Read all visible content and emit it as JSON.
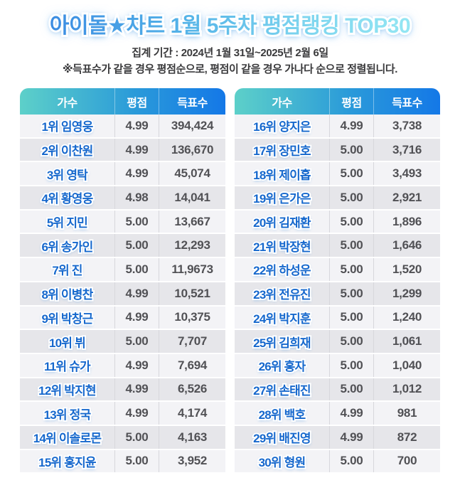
{
  "header": {
    "title": "아이돌★차트 1월 5주차 평점랭킹 TOP30",
    "period_line": "집계 기간 : 2024년 1월 31일~2025년 2월 6일",
    "note_line": "※득표수가 같을 경우 평점순으로, 평점이 같을 경우 가나다 순으로 정렬됩니다."
  },
  "colors": {
    "header_gradient_start": "#5dd0c9",
    "header_gradient_end": "#1478e7",
    "title_gradient_start": "#3b8ce2",
    "title_gradient_end": "#93e6f3",
    "name_text": "#1668cd",
    "number_text": "#515155",
    "row_light": "#f3f3f6",
    "row_dark": "#e6e6ea"
  },
  "chart_data": {
    "type": "table",
    "title": "아이돌★차트 1월 5주차 평점랭킹 TOP30",
    "columns": {
      "artist": "가수",
      "rating": "평점",
      "votes": "득표수"
    },
    "tables": [
      {
        "rows": [
          {
            "name": "1위 임영웅",
            "rating": "4.99",
            "votes": "394,424"
          },
          {
            "name": "2위 이찬원",
            "rating": "4.99",
            "votes": "136,670"
          },
          {
            "name": "3위 영탁",
            "rating": "4.99",
            "votes": "45,074"
          },
          {
            "name": "4위 황영웅",
            "rating": "4.98",
            "votes": "14,041"
          },
          {
            "name": "5위 지민",
            "rating": "5.00",
            "votes": "13,667"
          },
          {
            "name": "6위 송가인",
            "rating": "5.00",
            "votes": "12,293"
          },
          {
            "name": "7위 진",
            "rating": "5.00",
            "votes": "11,9673"
          },
          {
            "name": "8위 이병찬",
            "rating": "4.99",
            "votes": "10,521"
          },
          {
            "name": "9위 박창근",
            "rating": "4.99",
            "votes": "10,375"
          },
          {
            "name": "10위 뷔",
            "rating": "5.00",
            "votes": "7,707"
          },
          {
            "name": "11위 슈가",
            "rating": "4.99",
            "votes": "7,694"
          },
          {
            "name": "12위 박지현",
            "rating": "4.99",
            "votes": "6,526"
          },
          {
            "name": "13위 정국",
            "rating": "4.99",
            "votes": "4,174"
          },
          {
            "name": "14위 이솔로몬",
            "rating": "5.00",
            "votes": "4,163"
          },
          {
            "name": "15위 홍지윤",
            "rating": "5.00",
            "votes": "3,952"
          }
        ]
      },
      {
        "rows": [
          {
            "name": "16위 양지은",
            "rating": "4.99",
            "votes": "3,738"
          },
          {
            "name": "17위 장민호",
            "rating": "5.00",
            "votes": "3,716"
          },
          {
            "name": "18위 제이홉",
            "rating": "5.00",
            "votes": "3,493"
          },
          {
            "name": "19위 은가은",
            "rating": "5.00",
            "votes": "2,921"
          },
          {
            "name": "20위 김재환",
            "rating": "5.00",
            "votes": "1,896"
          },
          {
            "name": "21위 박장현",
            "rating": "5.00",
            "votes": "1,646"
          },
          {
            "name": "22위 하성운",
            "rating": "5.00",
            "votes": "1,520"
          },
          {
            "name": "23위 전유진",
            "rating": "5.00",
            "votes": "1,299"
          },
          {
            "name": "24위 박지훈",
            "rating": "5.00",
            "votes": "1,240"
          },
          {
            "name": "25위 김희재",
            "rating": "5.00",
            "votes": "1,061"
          },
          {
            "name": "26위 홍자",
            "rating": "5.00",
            "votes": "1,040"
          },
          {
            "name": "27위 손태진",
            "rating": "5.00",
            "votes": "1,012"
          },
          {
            "name": "28위 백호",
            "rating": "4.99",
            "votes": "981"
          },
          {
            "name": "29위 배진영",
            "rating": "4.99",
            "votes": "872"
          },
          {
            "name": "30위 형원",
            "rating": "5.00",
            "votes": "700"
          }
        ]
      }
    ]
  }
}
